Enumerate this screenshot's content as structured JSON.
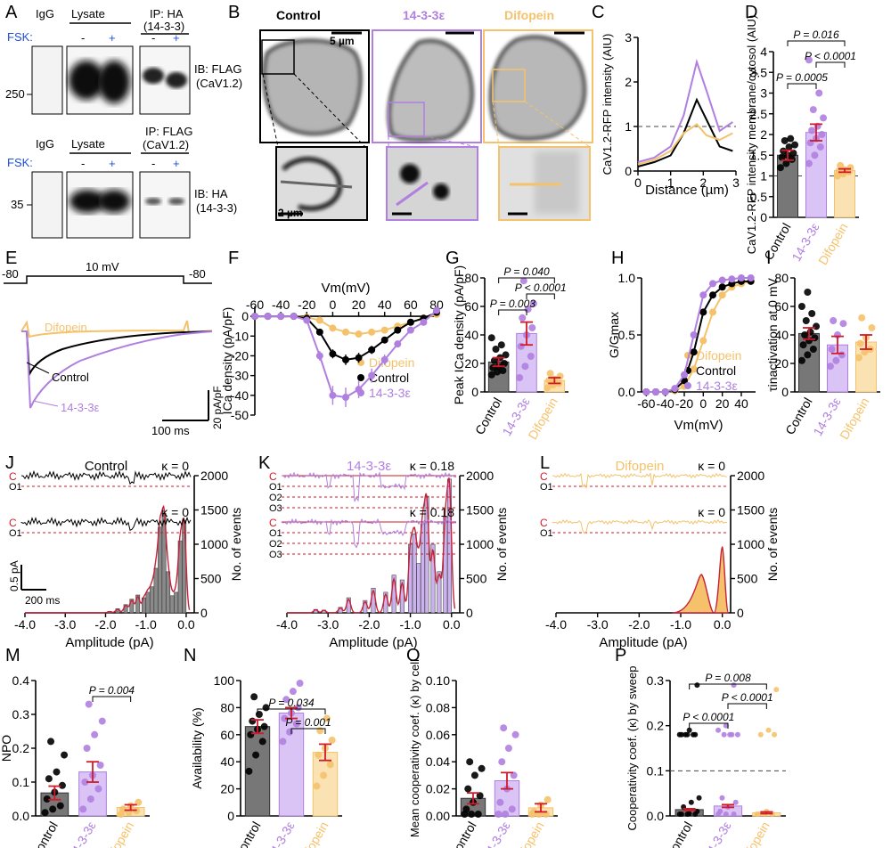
{
  "colors": {
    "control": "#000000",
    "eps": "#b07fe0",
    "dif": "#f5c26b",
    "control_bar": "#777777",
    "eps_bar": "#d9c4f5",
    "dif_bar": "#fae2b3",
    "err": "#d11a2a",
    "fsk": "#1f4fd6",
    "fit": "#c4233a"
  },
  "panels": {
    "A": "A",
    "B": "B",
    "C": "C",
    "D": "D",
    "E": "E",
    "F": "F",
    "G": "G",
    "H": "H",
    "I": "I",
    "J": "J",
    "K": "K",
    "L": "L",
    "M": "M",
    "N": "N",
    "O": "O",
    "P": "P"
  },
  "groups": [
    "Control",
    "14-3-3ε",
    "Difopein"
  ],
  "panel_a": {
    "igg": "IgG",
    "lysate": "Lysate",
    "fsk": "FSK:",
    "minus": "-",
    "plus": "+",
    "top": {
      "ip": "IP: HA",
      "ip2": "(14-3-3)",
      "ib": "IB: FLAG",
      "ib2": "(CaV1.2)",
      "mw": "250"
    },
    "bottom": {
      "ip": "IP: FLAG",
      "ip2": "(CaV1.2)",
      "ib": "IB: HA",
      "ib2": "(14-3-3)",
      "mw": "35"
    }
  },
  "panel_b": {
    "titles": [
      "Control",
      "14-3-3ε",
      "Difopein"
    ],
    "scale_top": "5 µm",
    "scale_bottom": "2 µm"
  },
  "chart_data": [
    {
      "id": "C",
      "type": "line",
      "xlabel": "Distance (µm)",
      "ylabel": "CaV1.2-RFP intensity (AIU)",
      "xlim": [
        0,
        3
      ],
      "ylim": [
        0,
        3
      ],
      "xticks": [
        "0",
        "1",
        "2",
        "3"
      ],
      "yticks": [
        "0",
        "1",
        "2",
        "3"
      ],
      "ref_line": 1,
      "series": [
        {
          "name": "Control",
          "x": [
            0,
            0.5,
            1,
            1.4,
            1.8,
            2.1,
            2.5,
            2.9
          ],
          "y": [
            0.1,
            0.2,
            0.35,
            0.85,
            1.6,
            1.15,
            0.55,
            0.45
          ]
        },
        {
          "name": "14-3-3ε",
          "x": [
            0,
            0.5,
            1,
            1.4,
            1.8,
            2.1,
            2.5,
            2.9
          ],
          "y": [
            0.2,
            0.3,
            0.55,
            1.25,
            2.45,
            1.8,
            0.9,
            1.1
          ]
        },
        {
          "name": "Difopein",
          "x": [
            0,
            0.5,
            1,
            1.4,
            1.8,
            2.1,
            2.5,
            2.9
          ],
          "y": [
            0.15,
            0.25,
            0.45,
            0.85,
            1.05,
            0.8,
            0.7,
            0.85
          ]
        }
      ]
    },
    {
      "id": "D",
      "type": "bar",
      "ylabel": "CaV1.2-RFP intensity membrane/cytosol (AIU)",
      "ylim": [
        0,
        4
      ],
      "yticks": [
        "0",
        "0.5",
        "1",
        "1.5",
        "2",
        "2.5",
        "3",
        "3.5",
        "4"
      ],
      "categories": [
        "Control",
        "14-3-3ε",
        "Difopein"
      ],
      "values": [
        1.5,
        2.05,
        1.13
      ],
      "sem": [
        0.12,
        0.2,
        0.04
      ],
      "ref_line": 1,
      "points": [
        [
          1.2,
          1.3,
          1.4,
          1.45,
          1.5,
          1.55,
          1.6,
          1.7,
          1.75,
          1.85,
          1.9
        ],
        [
          1.3,
          1.5,
          1.7,
          1.8,
          1.9,
          2.0,
          2.1,
          2.2,
          2.4,
          2.6,
          3.0,
          3.8
        ],
        [
          1.0,
          1.05,
          1.1,
          1.12,
          1.15,
          1.2,
          1.25
        ]
      ],
      "pvals": [
        {
          "a": 0,
          "b": 2,
          "text": "P = 0.016"
        },
        {
          "a": 1,
          "b": 2,
          "text": "P < 0.0001"
        },
        {
          "a": 0,
          "b": 1,
          "text": "P = 0.0005"
        }
      ]
    },
    {
      "id": "E",
      "type": "line",
      "labels": {
        "step": "10 mV",
        "hold_l": "-80",
        "hold_r": "-80",
        "control": "Control",
        "eps": "14-3-3ε",
        "dif": "Difopein",
        "sy": "20 pA/pF",
        "sx": "100 ms"
      }
    },
    {
      "id": "F",
      "type": "line",
      "xlabel": "Vm(mV)",
      "ylabel": "ICa density (pA/pF)",
      "xlim": [
        -60,
        80
      ],
      "ylim": [
        -50,
        5
      ],
      "xticks": [
        "-60",
        "-40",
        "-20",
        "0",
        "20",
        "40",
        "60",
        "80"
      ],
      "yticks": [
        "0",
        "-10",
        "-20",
        "-30",
        "-40",
        "-50"
      ],
      "x": [
        -60,
        -50,
        -40,
        -30,
        -20,
        -10,
        0,
        10,
        20,
        30,
        40,
        50,
        60,
        70,
        80
      ],
      "series": [
        {
          "name": "Difopein",
          "y": [
            0,
            0,
            0,
            0,
            -0.5,
            -2,
            -6,
            -8,
            -9,
            -8,
            -7,
            -5,
            -3,
            -1,
            1
          ]
        },
        {
          "name": "Control",
          "y": [
            0,
            0,
            0,
            0,
            -1,
            -8,
            -19,
            -22,
            -21,
            -17,
            -12,
            -7,
            -3,
            -1,
            2
          ]
        },
        {
          "name": "14-3-3ε",
          "y": [
            0,
            0,
            0,
            0,
            -2,
            -20,
            -40,
            -41,
            -37,
            -30,
            -22,
            -14,
            -7,
            -3,
            3
          ]
        }
      ]
    },
    {
      "id": "G",
      "type": "bar",
      "ylabel": "Peak ICa density (pA/pF)",
      "ylim": [
        0,
        80
      ],
      "yticks": [
        "0",
        "20",
        "40",
        "60",
        "80"
      ],
      "categories": [
        "Control",
        "14-3-3ε",
        "Difopein"
      ],
      "values": [
        21,
        41,
        8
      ],
      "sem": [
        3,
        8,
        2
      ],
      "points": [
        [
          12,
          14,
          15,
          17,
          18,
          20,
          22,
          24,
          26,
          30,
          33,
          38
        ],
        [
          10,
          18,
          25,
          32,
          40,
          45,
          52,
          58,
          62,
          78
        ],
        [
          3,
          5,
          6,
          8,
          9,
          11,
          13
        ]
      ],
      "pvals": [
        {
          "a": 0,
          "b": 2,
          "text": "P = 0.040"
        },
        {
          "a": 1,
          "b": 2,
          "text": "P < 0.0001"
        },
        {
          "a": 0,
          "b": 1,
          "text": "P = 0.003"
        }
      ]
    },
    {
      "id": "H",
      "type": "line",
      "xlabel": "Vm(mV)",
      "ylabel": "G/Gmax",
      "xlim": [
        -65,
        55
      ],
      "ylim": [
        0,
        1
      ],
      "xticks": [
        "-60",
        "-40",
        "-20",
        "0",
        "20",
        "40"
      ],
      "yticks": [
        "0.0",
        "0.5",
        "1.0"
      ],
      "x": [
        -60,
        -50,
        -40,
        -30,
        -20,
        -10,
        0,
        10,
        20,
        30,
        40,
        50
      ],
      "series": [
        {
          "name": "Difopein",
          "y": [
            0,
            0,
            0,
            0.01,
            0.05,
            0.2,
            0.45,
            0.7,
            0.85,
            0.92,
            0.95,
            0.97
          ]
        },
        {
          "name": "Control",
          "y": [
            0,
            0,
            0,
            0.02,
            0.1,
            0.35,
            0.7,
            0.85,
            0.92,
            0.95,
            0.97,
            0.97
          ]
        },
        {
          "name": "14-3-3ε",
          "y": [
            0,
            0,
            0,
            0.03,
            0.15,
            0.5,
            0.85,
            0.95,
            0.98,
            0.99,
            1.0,
            1.0
          ]
        }
      ]
    },
    {
      "id": "I",
      "type": "bar",
      "ylabel": "τinactivation at 0 mV",
      "ylim": [
        0,
        80
      ],
      "yticks": [
        "0",
        "20",
        "40",
        "60",
        "80"
      ],
      "categories": [
        "Control",
        "14-3-3ε",
        "Difopein"
      ],
      "values": [
        41,
        33,
        35
      ],
      "sem": [
        4,
        6,
        5
      ],
      "points": [
        [
          22,
          26,
          30,
          33,
          36,
          38,
          40,
          42,
          46,
          50,
          55,
          60,
          70
        ],
        [
          18,
          22,
          26,
          30,
          40,
          48,
          50
        ],
        [
          24,
          28,
          30,
          34,
          38,
          45,
          52
        ]
      ]
    },
    {
      "id": "J",
      "type": "bar",
      "xlabel": "Amplitude (pA)",
      "ylabel": "No. of events",
      "xlim": [
        -4,
        0.2
      ],
      "ylim": [
        0,
        2000
      ],
      "xticks": [
        "-4.0",
        "-3.0",
        "-2.0",
        "-1.0",
        "0.0"
      ],
      "yticks": [
        "0",
        "500",
        "1000",
        "1500",
        "2000"
      ],
      "bins": [
        -1.9,
        -1.7,
        -1.5,
        -1.35,
        -1.2,
        -1.05,
        -0.95,
        -0.85,
        -0.75,
        -0.65,
        -0.55,
        -0.45,
        -0.35,
        -0.25,
        -0.15,
        -0.05
      ],
      "counts": [
        20,
        60,
        120,
        200,
        260,
        220,
        300,
        380,
        650,
        1250,
        1450,
        600,
        250,
        300,
        1050,
        1350
      ],
      "labels": {
        "title": "Control",
        "kappa1": "κ = 0",
        "kappa2": "κ = 0",
        "c": "C",
        "o1": "O1",
        "sy": "0.5 pA",
        "sx": "200 ms"
      }
    },
    {
      "id": "K",
      "type": "bar",
      "xlabel": "Amplitude (pA)",
      "ylabel": "No. of events",
      "xlim": [
        -4,
        0.2
      ],
      "ylim": [
        0,
        2000
      ],
      "xticks": [
        "-4.0",
        "-3.0",
        "-2.0",
        "-1.0",
        "0.0"
      ],
      "yticks": [
        "0",
        "500",
        "1000",
        "1500",
        "2000"
      ],
      "bins": [
        -3.3,
        -3.1,
        -2.7,
        -2.5,
        -2.1,
        -1.9,
        -1.6,
        -1.4,
        -1.2,
        -1.0,
        -0.9,
        -0.8,
        -0.7,
        -0.6,
        -0.45,
        -0.3,
        -0.15,
        -0.05
      ],
      "counts": [
        50,
        40,
        80,
        220,
        180,
        360,
        300,
        550,
        480,
        1000,
        1150,
        720,
        1300,
        1700,
        1000,
        600,
        1400,
        1950
      ],
      "labels": {
        "title": "14-3-3ε",
        "kappa1": "κ = 0.18",
        "kappa2": "κ = 0.18",
        "c": "C",
        "o1": "O1",
        "o2": "O2",
        "o3": "O3"
      }
    },
    {
      "id": "L",
      "type": "area",
      "xlabel": "Amplitude (pA)",
      "ylabel": "No. of events",
      "xlim": [
        -4,
        0.2
      ],
      "ylim": [
        0,
        2000
      ],
      "xticks": [
        "-4.0",
        "-3.0",
        "-2.0",
        "-1.0",
        "0.0"
      ],
      "yticks": [
        "0",
        "500",
        "1000",
        "1500",
        "2000"
      ],
      "labels": {
        "title": "Difopein",
        "kappa1": "κ = 0",
        "kappa2": "κ = 0",
        "c": "C",
        "o1": "O1"
      }
    },
    {
      "id": "M",
      "type": "bar",
      "ylabel": "NPO",
      "ylim": [
        0,
        0.4
      ],
      "yticks": [
        "0.0",
        "0.1",
        "0.2",
        "0.3",
        "0.4"
      ],
      "categories": [
        "Control",
        "14-3-3ε",
        "Difopein"
      ],
      "values": [
        0.068,
        0.13,
        0.025
      ],
      "sem": [
        0.02,
        0.03,
        0.008
      ],
      "points": [
        [
          0.01,
          0.02,
          0.03,
          0.05,
          0.07,
          0.09,
          0.11,
          0.13,
          0.18,
          0.22
        ],
        [
          0.02,
          0.05,
          0.08,
          0.1,
          0.12,
          0.15,
          0.2,
          0.24,
          0.28,
          0.33
        ],
        [
          0.005,
          0.01,
          0.015,
          0.02,
          0.03,
          0.04
        ]
      ],
      "pvals": [
        {
          "a": 1,
          "b": 2,
          "text": "P = 0.004"
        }
      ]
    },
    {
      "id": "N",
      "type": "bar",
      "ylabel": "Availability (%)",
      "ylim": [
        0,
        100
      ],
      "yticks": [
        "0",
        "20",
        "40",
        "60",
        "80",
        "100"
      ],
      "categories": [
        "Control",
        "14-3-3ε",
        "Difopein"
      ],
      "values": [
        66,
        76,
        47
      ],
      "sem": [
        5,
        4,
        6
      ],
      "points": [
        [
          33,
          45,
          55,
          60,
          64,
          66,
          70,
          75,
          80,
          88
        ],
        [
          55,
          62,
          68,
          72,
          76,
          80,
          86,
          92,
          98
        ],
        [
          22,
          30,
          38,
          45,
          50,
          56,
          63,
          72
        ]
      ],
      "pvals": [
        {
          "a": 0,
          "b": 2,
          "text": "P = 0.034"
        },
        {
          "a": 1,
          "b": 2,
          "text": "P = 0.001"
        }
      ]
    },
    {
      "id": "O",
      "type": "bar",
      "ylabel": "Mean cooperativity coef. (κ) by cell",
      "ylim": [
        0,
        0.1
      ],
      "yticks": [
        "0.00",
        "0.02",
        "0.04",
        "0.06",
        "0.08",
        "0.10"
      ],
      "categories": [
        "Control",
        "14-3-3ε",
        "Difopein"
      ],
      "values": [
        0.013,
        0.026,
        0.006
      ],
      "sem": [
        0.004,
        0.006,
        0.003
      ],
      "points": [
        [
          0,
          0,
          0,
          0.005,
          0.01,
          0.015,
          0.02,
          0.03,
          0.035,
          0.04
        ],
        [
          0,
          0,
          0.005,
          0.01,
          0.02,
          0.03,
          0.04,
          0.05,
          0.06,
          0.065
        ],
        [
          0,
          0,
          0,
          0.003,
          0.008,
          0.012
        ]
      ]
    },
    {
      "id": "P",
      "type": "bar",
      "ylabel": "Cooperativity coef. (κ) by sweep",
      "ylim": [
        0,
        0.3
      ],
      "yticks": [
        "0.0",
        "0.1",
        "0.2",
        "0.3"
      ],
      "categories": [
        "Control",
        "14-3-3ε",
        "Difopein"
      ],
      "values": [
        0.014,
        0.022,
        0.007
      ],
      "sem": [
        0.002,
        0.003,
        0.002
      ],
      "ref_line": 0.1,
      "points": [
        [
          0,
          0,
          0,
          0,
          0.005,
          0.01,
          0.02,
          0.03,
          0.04,
          0.18,
          0.18,
          0.18,
          0.18,
          0.18,
          0.18,
          0.19,
          0.29
        ],
        [
          0,
          0,
          0,
          0.01,
          0.02,
          0.03,
          0.04,
          0.18,
          0.18,
          0.18,
          0.18,
          0.19,
          0.2,
          0.29
        ],
        [
          0,
          0,
          0,
          0,
          0.01,
          0.18,
          0.18,
          0.19,
          0.28
        ]
      ],
      "pvals": [
        {
          "a": 0,
          "b": 2,
          "text": "P = 0.008"
        },
        {
          "a": 1,
          "b": 2,
          "text": "P < 0.0001"
        },
        {
          "a": 0,
          "b": 1,
          "text": "P < 0.0001"
        }
      ]
    }
  ]
}
